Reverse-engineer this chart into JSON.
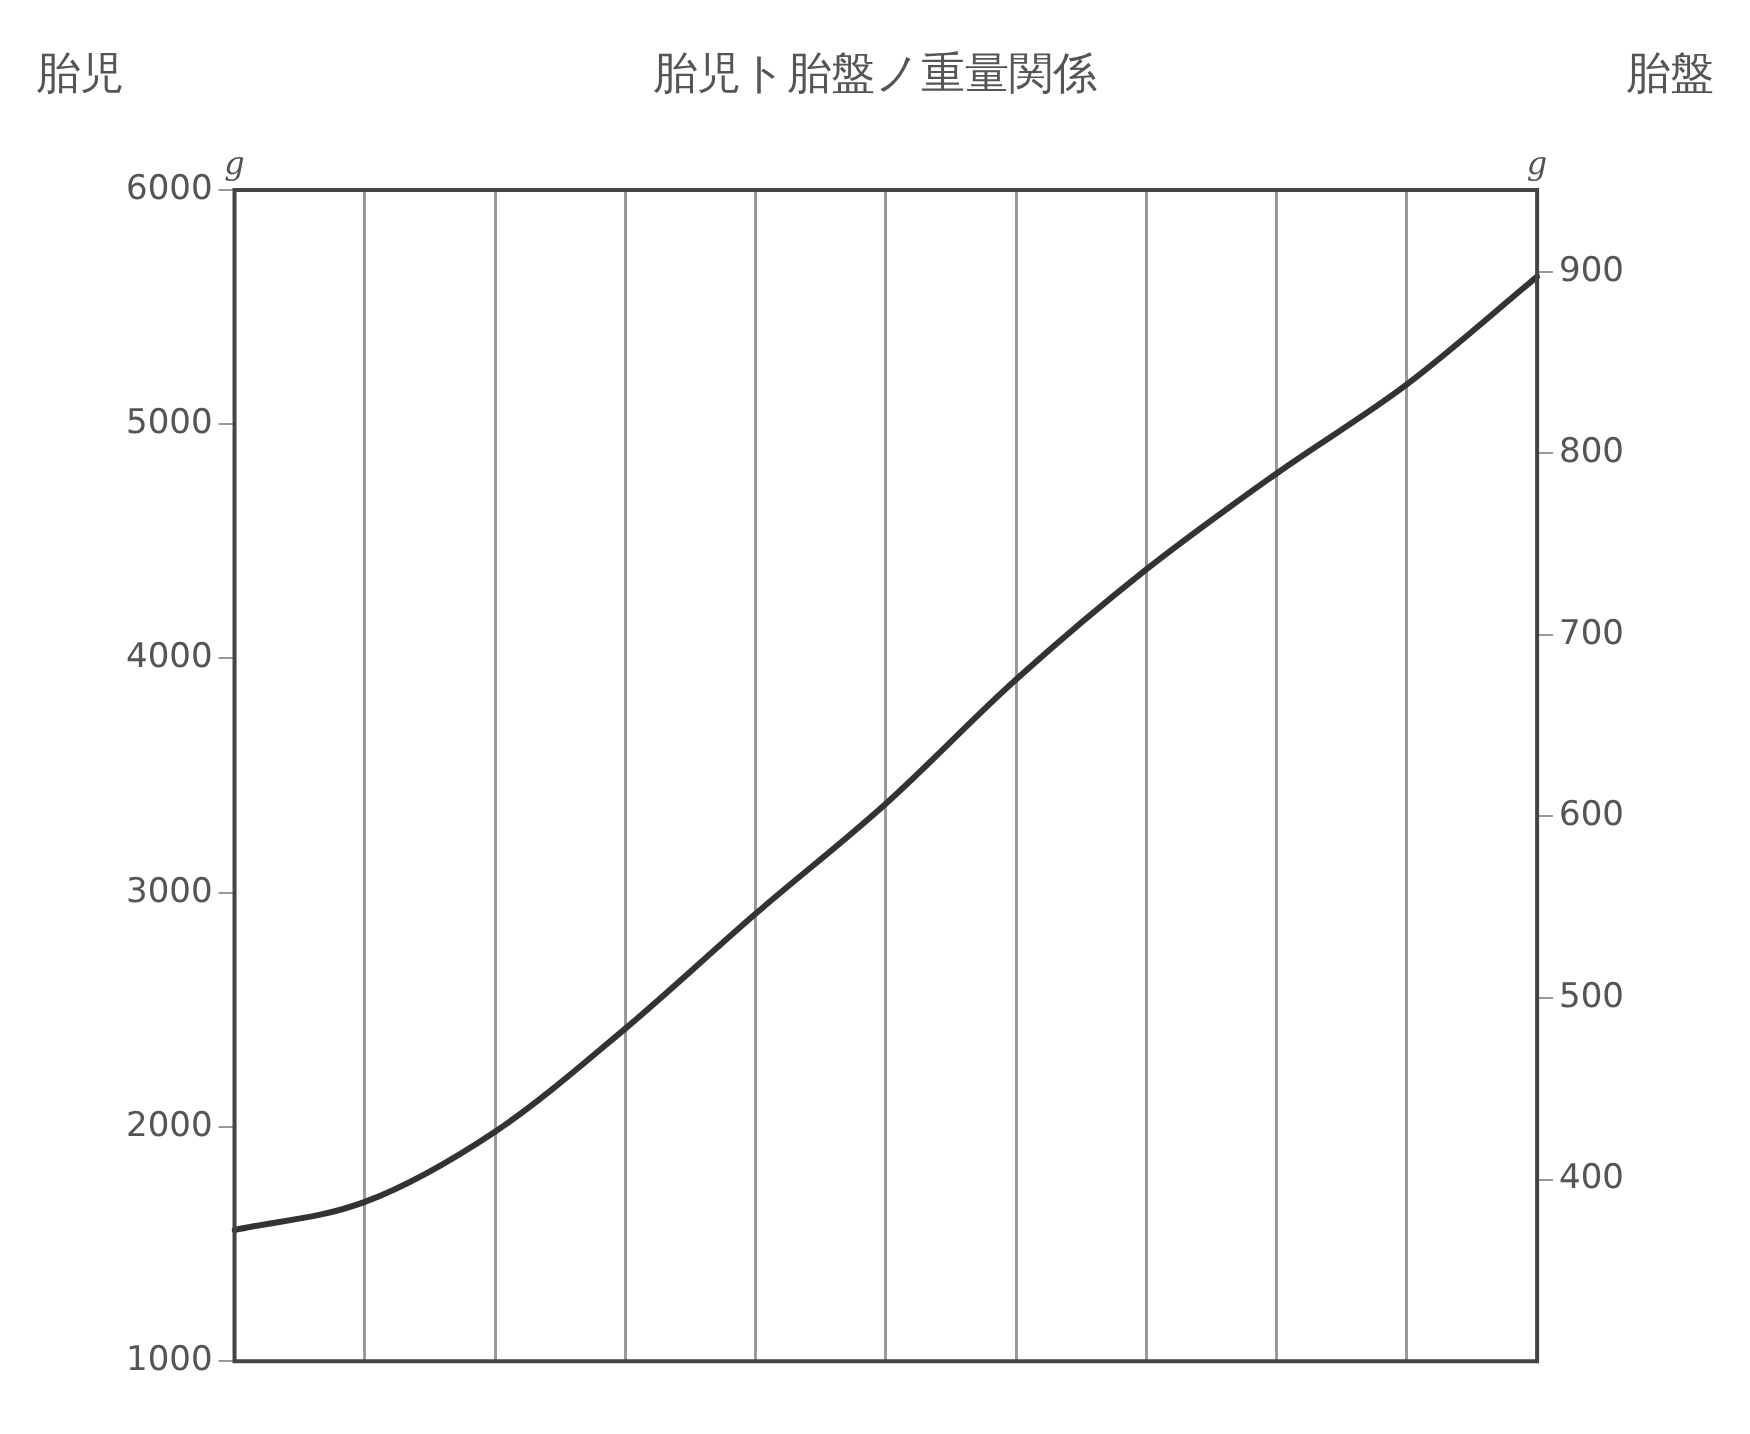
{
  "chart_data": {
    "type": "line",
    "title": "胎児ト胎盤ノ重量関係",
    "ylabel": "胎児",
    "y2label": "胎盤",
    "annotations": [
      "g",
      "g"
    ],
    "categories": [
      null,
      null,
      null,
      null,
      null,
      null,
      null,
      null,
      null,
      null,
      null
    ],
    "series": [
      {
        "color": "#333333",
        "values": [
          1560,
          1680,
          1980,
          2420,
          2910,
          3380,
          3910,
          4380,
          4790,
          5170,
          5630
        ]
      }
    ],
    "ylim": [
      1000,
      6000
    ],
    "yticks": [
      1000,
      2000,
      3000,
      4000,
      5000,
      6000
    ],
    "y2lim": [
      300,
      945
    ],
    "y2ticks": [
      400,
      500,
      600,
      700,
      800,
      900
    ],
    "grid": "x",
    "legend": false,
    "marker": "none",
    "line_style": "solid"
  }
}
